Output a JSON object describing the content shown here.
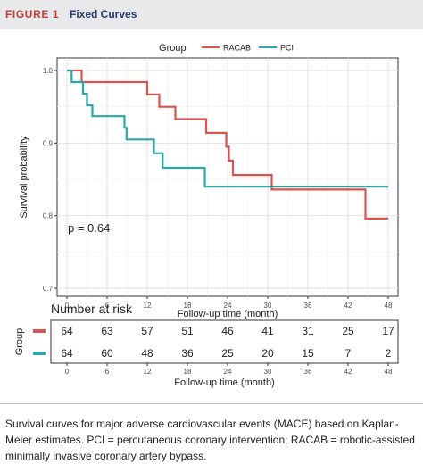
{
  "header": {
    "figure_label": "FIGURE 1",
    "title": "Fixed Curves"
  },
  "chart_data": [
    {
      "type": "line",
      "subtype": "kaplan-meier step",
      "title": "",
      "legend": {
        "title": "Group",
        "placement": "top"
      },
      "xlabel": "Follow-up time (month)",
      "ylabel": "Survival probability",
      "xlim": [
        0,
        48
      ],
      "ylim": [
        0.7,
        1.0
      ],
      "x_ticks": [
        "0",
        "6",
        "12",
        "18",
        "24",
        "30",
        "36",
        "42",
        "48"
      ],
      "y_ticks": [
        "0.7",
        "0.8",
        "0.9",
        "1.0"
      ],
      "grid": true,
      "annotation": "p = 0.64",
      "series": [
        {
          "name": "RACAB",
          "color": "#d9534f",
          "points": [
            [
              0,
              1.0
            ],
            [
              2.2,
              1.0
            ],
            [
              2.2,
              0.984
            ],
            [
              12,
              0.984
            ],
            [
              12,
              0.967
            ],
            [
              13.8,
              0.967
            ],
            [
              13.8,
              0.95
            ],
            [
              16.2,
              0.95
            ],
            [
              16.2,
              0.933
            ],
            [
              20.8,
              0.933
            ],
            [
              20.8,
              0.914
            ],
            [
              23.8,
              0.914
            ],
            [
              23.8,
              0.895
            ],
            [
              24.2,
              0.895
            ],
            [
              24.2,
              0.876
            ],
            [
              24.8,
              0.876
            ],
            [
              24.8,
              0.856
            ],
            [
              30.6,
              0.856
            ],
            [
              30.6,
              0.836
            ],
            [
              44.6,
              0.836
            ],
            [
              44.6,
              0.796
            ],
            [
              48,
              0.796
            ]
          ]
        },
        {
          "name": "PCI",
          "color": "#2aa8a8",
          "points": [
            [
              0,
              1.0
            ],
            [
              0.7,
              1.0
            ],
            [
              0.7,
              0.984
            ],
            [
              2.4,
              0.984
            ],
            [
              2.4,
              0.968
            ],
            [
              3.0,
              0.968
            ],
            [
              3.0,
              0.952
            ],
            [
              3.8,
              0.952
            ],
            [
              3.8,
              0.937
            ],
            [
              8.6,
              0.937
            ],
            [
              8.6,
              0.921
            ],
            [
              8.9,
              0.921
            ],
            [
              8.9,
              0.905
            ],
            [
              13,
              0.905
            ],
            [
              13,
              0.886
            ],
            [
              14.3,
              0.886
            ],
            [
              14.3,
              0.866
            ],
            [
              20.6,
              0.866
            ],
            [
              20.6,
              0.84
            ],
            [
              48,
              0.84
            ]
          ]
        }
      ]
    },
    {
      "type": "table",
      "title": "Number at risk",
      "ylabel": "Group",
      "xlabel": "Follow-up time (month)",
      "x_ticks": [
        "0",
        "6",
        "12",
        "18",
        "24",
        "30",
        "36",
        "42",
        "48"
      ],
      "series": [
        {
          "name": "RACAB",
          "color": "#d9534f",
          "values": [
            "64",
            "63",
            "57",
            "51",
            "46",
            "41",
            "31",
            "25",
            "17"
          ]
        },
        {
          "name": "PCI",
          "color": "#2aa8a8",
          "values": [
            "64",
            "60",
            "48",
            "36",
            "25",
            "20",
            "15",
            "7",
            "2"
          ]
        }
      ]
    }
  ],
  "caption": "Survival curves for major adverse cardiovascular events (MACE) based on Kaplan-Meier estimates. PCI = percutaneous coronary intervention; RACAB = robotic-assisted minimally invasive coronary artery bypass."
}
